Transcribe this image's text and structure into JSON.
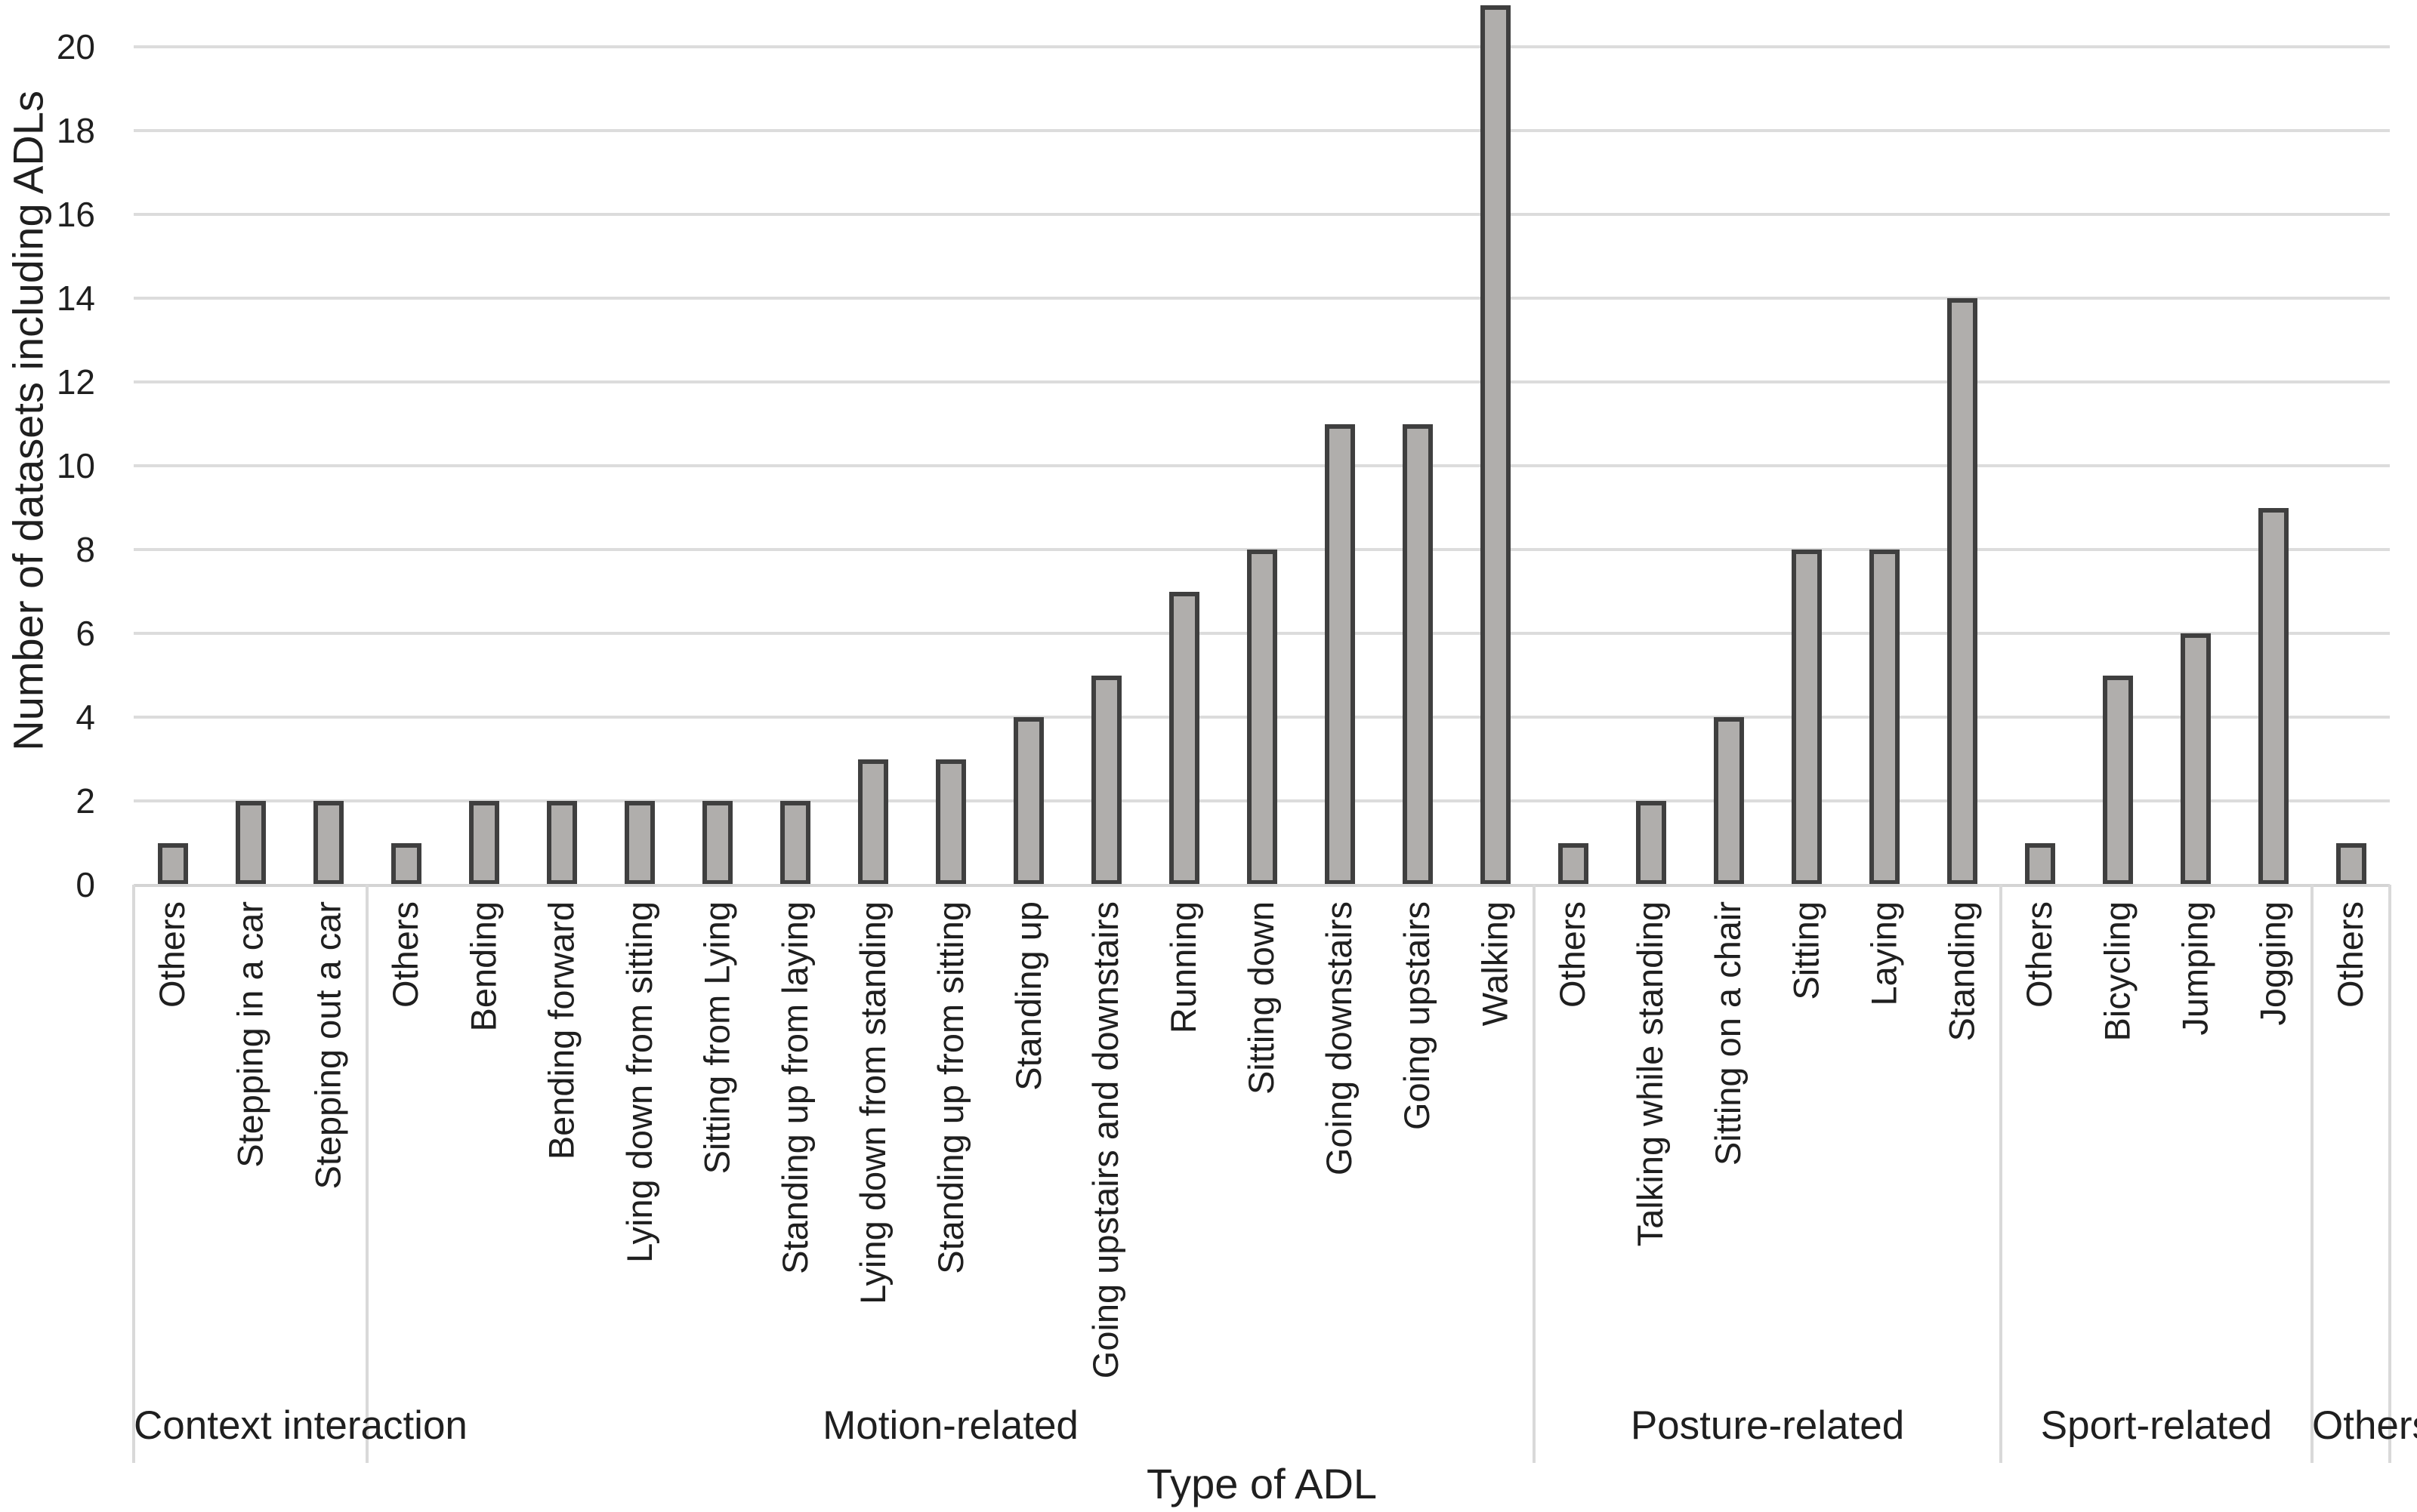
{
  "chart_data": {
    "type": "bar",
    "title": "",
    "ylabel": "Number of datasets including ADLs",
    "xlabel": "Type of ADL",
    "ylim": [
      0,
      21
    ],
    "yticks": [
      0,
      2,
      4,
      6,
      8,
      10,
      12,
      14,
      16,
      18,
      20
    ],
    "grid": true,
    "legend_position": "none",
    "colors": {
      "bar_fill": "#b0aeac",
      "bar_border": "#3f3f3f",
      "gridline": "#dcdcdc",
      "axis_line": "#d4d4d4",
      "separator": "#d9d9d9",
      "text": "#1f1f1f"
    },
    "groups": [
      {
        "label": "Context interaction",
        "categories": [
          "Others",
          "Stepping in a car",
          "Stepping out a car"
        ],
        "values": [
          1,
          2,
          2
        ]
      },
      {
        "label": "Motion-related",
        "categories": [
          "Others",
          "Bending",
          "Bending forward",
          "Lying down from sitting",
          "Sitting from Lying",
          "Standing up from laying",
          "Lying down from standing",
          "Standing up from sitting",
          "Standing up",
          "Going upstairs and downstairs",
          "Running",
          "Sitting down",
          "Going downstairs",
          "Going upstairs",
          "Walking"
        ],
        "values": [
          1,
          2,
          2,
          2,
          2,
          2,
          3,
          3,
          4,
          5,
          7,
          8,
          11,
          11,
          21
        ]
      },
      {
        "label": "Posture-related",
        "categories": [
          "Others",
          "Talking while standing",
          "Sitting on a chair",
          "Sitting",
          "Laying",
          "Standing"
        ],
        "values": [
          1,
          2,
          4,
          8,
          8,
          14
        ]
      },
      {
        "label": "Sport-related",
        "categories": [
          "Others",
          "Bicycling",
          "Jumping",
          "Jogging"
        ],
        "values": [
          1,
          5,
          6,
          9
        ]
      },
      {
        "label": "Others",
        "categories": [
          "Others"
        ],
        "values": [
          1
        ]
      }
    ]
  }
}
